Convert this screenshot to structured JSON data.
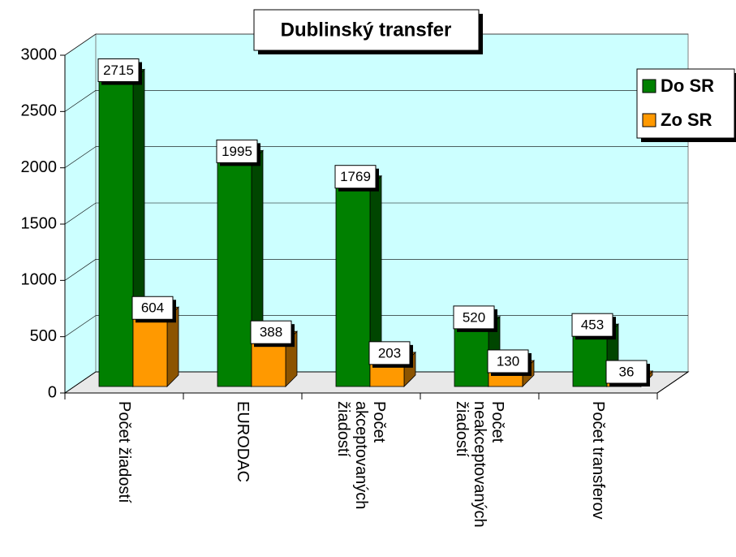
{
  "chart_data": {
    "type": "bar3d",
    "title": "Dublinský transfer",
    "categories": [
      "Počet žiadostí",
      "EURODAC",
      "Počet akceptovaných žiadostí",
      "Počet neakceptovaných žiadostí",
      "Počet transferov"
    ],
    "series": [
      {
        "name": "Do SR",
        "color": "#008000",
        "values": [
          2715,
          1995,
          1769,
          520,
          453
        ]
      },
      {
        "name": "Zo SR",
        "color": "#ff9900",
        "values": [
          604,
          388,
          203,
          130,
          36
        ]
      }
    ],
    "ylim": [
      0,
      3000
    ],
    "yticks": [
      0,
      500,
      1000,
      1500,
      2000,
      2500,
      3000
    ],
    "grid": true,
    "legend": "right"
  }
}
